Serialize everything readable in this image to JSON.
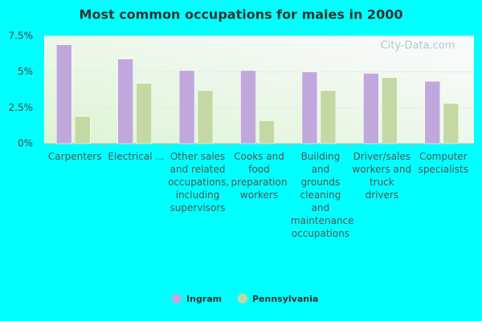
{
  "chart_data": {
    "type": "bar",
    "title": "Most common occupations for males in 2000",
    "watermark": "City-Data.com",
    "categories": [
      "Carpenters",
      "Electrical ...",
      "Other sales and related occupations, including supervisors",
      "Cooks and food preparation workers",
      "Building and grounds cleaning and maintenance occupations",
      "Driver/sales workers and truck drivers",
      "Computer specialists"
    ],
    "series": [
      {
        "name": "Ingram",
        "color": "#c0a8dc",
        "values": [
          6.9,
          5.9,
          5.1,
          5.1,
          5.0,
          4.9,
          4.35
        ]
      },
      {
        "name": "Pennsylvania",
        "color": "#c4d8a4",
        "values": [
          1.9,
          4.2,
          3.7,
          1.6,
          3.7,
          4.6,
          2.8
        ]
      }
    ],
    "ylim": [
      0,
      7.5
    ],
    "yticks": [
      {
        "value": 0,
        "label": "0%"
      },
      {
        "value": 2.5,
        "label": "2.5%"
      },
      {
        "value": 5,
        "label": "5%"
      },
      {
        "value": 7.5,
        "label": "7.5%"
      }
    ],
    "grid": true
  }
}
